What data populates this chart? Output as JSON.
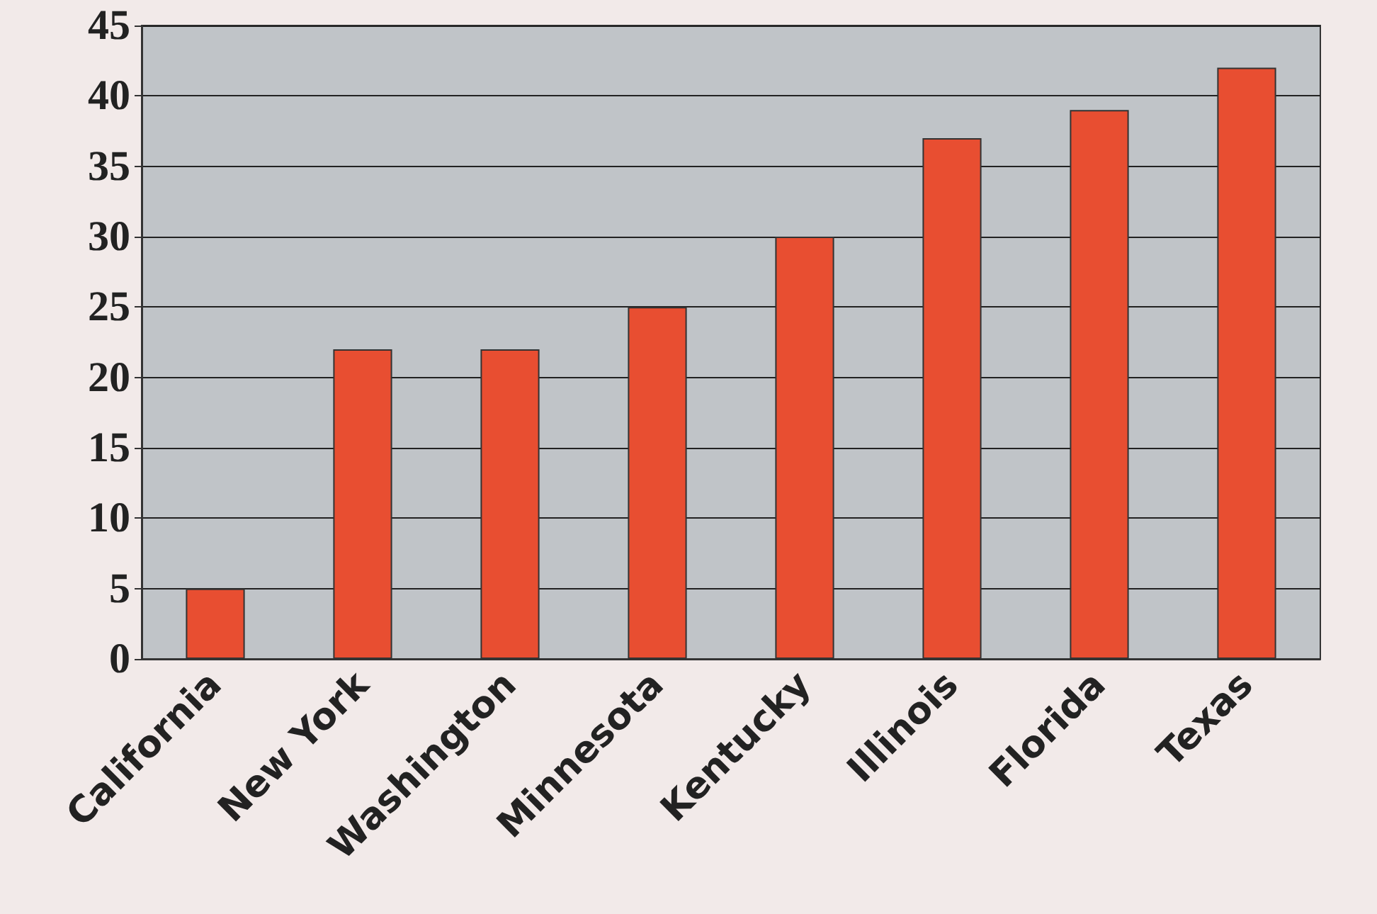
{
  "chart_data": {
    "type": "bar",
    "categories": [
      "California",
      "New York",
      "Washington",
      "Minnesota",
      "Kentucky",
      "Illinois",
      "Florida",
      "Texas"
    ],
    "values": [
      5,
      22,
      22,
      25,
      30,
      37,
      39,
      42
    ],
    "color": "#e84e31",
    "ylim": [
      0,
      45
    ],
    "yticks": [
      0,
      5,
      10,
      15,
      20,
      25,
      30,
      35,
      40,
      45
    ],
    "grid": "y"
  }
}
